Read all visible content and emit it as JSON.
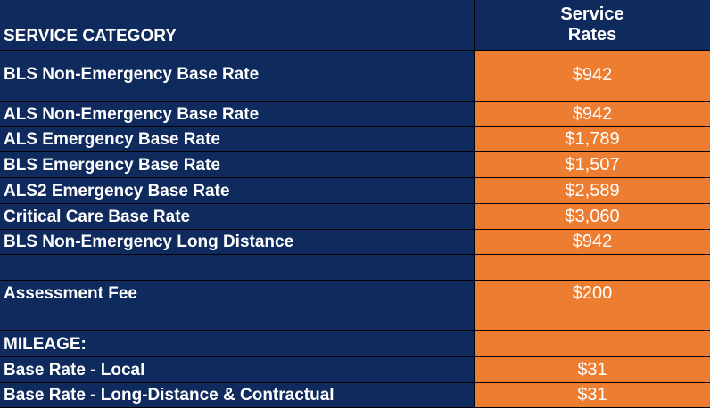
{
  "header": {
    "category_label": "SERVICE CATEGORY",
    "rate_label_line1": "Service",
    "rate_label_line2": "Rates"
  },
  "rows": [
    {
      "category": "BLS Non-Emergency Base Rate",
      "rate": "$942"
    },
    {
      "category": "ALS Non-Emergency Base Rate",
      "rate": "$942"
    },
    {
      "category": "ALS Emergency Base Rate",
      "rate": "$1,789"
    },
    {
      "category": "BLS Emergency Base Rate",
      "rate": "$1,507"
    },
    {
      "category": "ALS2 Emergency Base Rate",
      "rate": "$2,589"
    },
    {
      "category": "Critical Care Base Rate",
      "rate": "$3,060"
    },
    {
      "category": "BLS Non-Emergency Long Distance",
      "rate": "$942"
    },
    {
      "category": "",
      "rate": ""
    },
    {
      "category": "Assessment Fee",
      "rate": "$200"
    },
    {
      "category": "",
      "rate": ""
    },
    {
      "category": "MILEAGE:",
      "rate": ""
    },
    {
      "category": "Base Rate - Local",
      "rate": "$31"
    },
    {
      "category": "Base Rate - Long-Distance & Contractual",
      "rate": "$31"
    }
  ],
  "colors": {
    "navy": "#0f2a5c",
    "orange": "#ed7d31",
    "text": "#ffffff"
  }
}
